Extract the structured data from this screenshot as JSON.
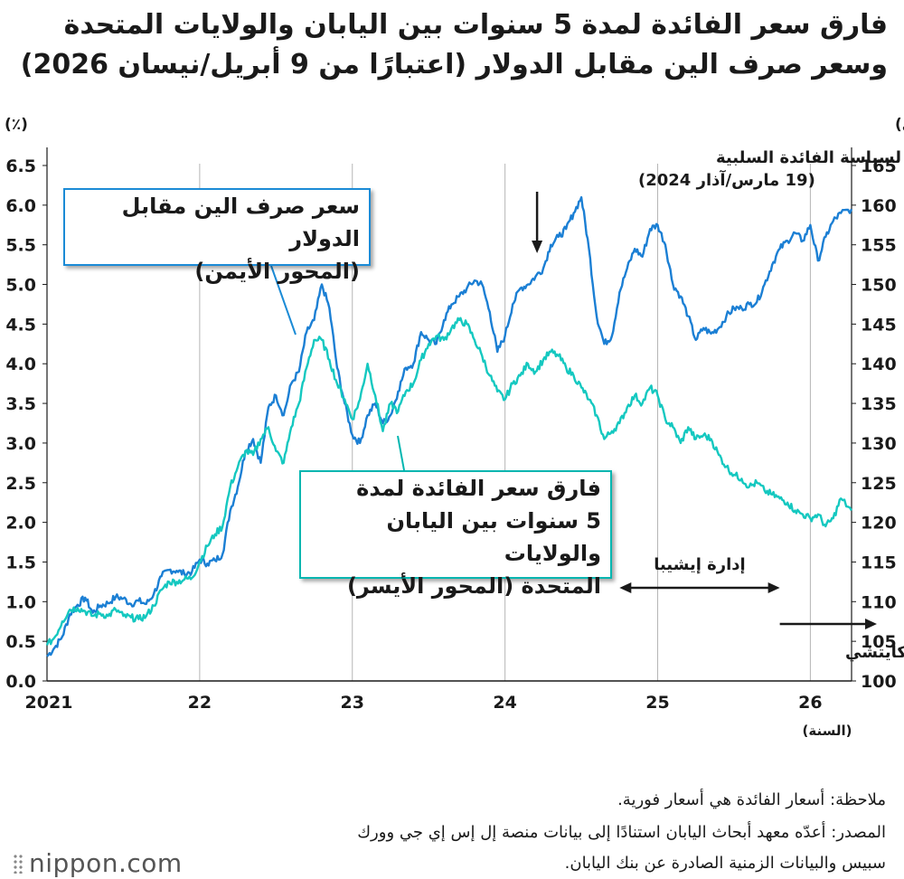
{
  "title": {
    "line1": "فارق سعر الفائدة لمدة 5 سنوات بين اليابان والولايات المتحدة",
    "line2": "وسعر صرف الين مقابل الدولار (اعتبارًا من 9 أبريل/نيسان 2026)"
  },
  "chart_data": {
    "type": "line",
    "x_unit_label": "(السنة)",
    "x_ticks": [
      {
        "x": 2021.0,
        "label": "2021"
      },
      {
        "x": 2022.0,
        "label": "22"
      },
      {
        "x": 2023.0,
        "label": "23"
      },
      {
        "x": 2024.0,
        "label": "24"
      },
      {
        "x": 2025.0,
        "label": "25"
      },
      {
        "x": 2026.0,
        "label": "26"
      }
    ],
    "xlim": [
      2021.0,
      2026.27
    ],
    "y_left": {
      "label": "(٪)",
      "ylim": [
        0,
        6.5
      ],
      "ticks": [
        "0.0",
        "0.5",
        "1.0",
        "1.5",
        "2.0",
        "2.5",
        "3.0",
        "3.5",
        "4.0",
        "4.5",
        "5.0",
        "5.5",
        "6.0",
        "6.5"
      ]
    },
    "y_right": {
      "label": "(عدد الين الياباني لكل دولار أمريكي)",
      "ylim": [
        100,
        165
      ],
      "ticks": [
        "100",
        "105",
        "110",
        "115",
        "120",
        "125",
        "130",
        "135",
        "140",
        "145",
        "150",
        "155",
        "160",
        "165"
      ]
    },
    "grid": "vertical",
    "series": [
      {
        "name": "سعر صرف الين مقابل الدولار (المحور الأيمن)",
        "axis": "right",
        "color": "#1b7fd4",
        "points": [
          [
            2021.0,
            103.1
          ],
          [
            2021.05,
            104.2
          ],
          [
            2021.1,
            105.6
          ],
          [
            2021.15,
            108.4
          ],
          [
            2021.2,
            109.6
          ],
          [
            2021.25,
            110.5
          ],
          [
            2021.3,
            108.6
          ],
          [
            2021.35,
            109.5
          ],
          [
            2021.4,
            109.8
          ],
          [
            2021.45,
            110.6
          ],
          [
            2021.5,
            110.4
          ],
          [
            2021.55,
            109.7
          ],
          [
            2021.6,
            110.1
          ],
          [
            2021.65,
            109.7
          ],
          [
            2021.7,
            111.0
          ],
          [
            2021.75,
            113.2
          ],
          [
            2021.8,
            114.0
          ],
          [
            2021.85,
            113.9
          ],
          [
            2021.9,
            113.5
          ],
          [
            2021.95,
            113.8
          ],
          [
            2022.0,
            115.3
          ],
          [
            2022.05,
            114.8
          ],
          [
            2022.1,
            115.2
          ],
          [
            2022.15,
            116.0
          ],
          [
            2022.2,
            121.5
          ],
          [
            2022.25,
            124.5
          ],
          [
            2022.3,
            129.0
          ],
          [
            2022.35,
            130.5
          ],
          [
            2022.4,
            127.5
          ],
          [
            2022.45,
            134.5
          ],
          [
            2022.5,
            136.0
          ],
          [
            2022.55,
            133.5
          ],
          [
            2022.6,
            137.5
          ],
          [
            2022.65,
            139.0
          ],
          [
            2022.7,
            144.0
          ],
          [
            2022.75,
            145.5
          ],
          [
            2022.8,
            150.0
          ],
          [
            2022.85,
            147.0
          ],
          [
            2022.9,
            139.5
          ],
          [
            2022.95,
            135.0
          ],
          [
            2023.0,
            131.0
          ],
          [
            2023.05,
            130.0
          ],
          [
            2023.1,
            133.5
          ],
          [
            2023.15,
            135.0
          ],
          [
            2023.2,
            132.5
          ],
          [
            2023.25,
            133.5
          ],
          [
            2023.3,
            136.5
          ],
          [
            2023.35,
            139.5
          ],
          [
            2023.4,
            140.0
          ],
          [
            2023.45,
            144.0
          ],
          [
            2023.5,
            143.0
          ],
          [
            2023.55,
            142.5
          ],
          [
            2023.6,
            145.5
          ],
          [
            2023.65,
            147.5
          ],
          [
            2023.7,
            148.5
          ],
          [
            2023.75,
            149.5
          ],
          [
            2023.8,
            150.5
          ],
          [
            2023.85,
            150.0
          ],
          [
            2023.9,
            146.5
          ],
          [
            2023.95,
            141.5
          ],
          [
            2024.0,
            143.5
          ],
          [
            2024.05,
            147.5
          ],
          [
            2024.1,
            149.5
          ],
          [
            2024.15,
            150.0
          ],
          [
            2024.2,
            151.0
          ],
          [
            2024.25,
            152.0
          ],
          [
            2024.3,
            155.0
          ],
          [
            2024.35,
            156.0
          ],
          [
            2024.4,
            157.0
          ],
          [
            2024.45,
            159.0
          ],
          [
            2024.5,
            161.0
          ],
          [
            2024.55,
            154.5
          ],
          [
            2024.6,
            146.0
          ],
          [
            2024.65,
            142.5
          ],
          [
            2024.7,
            143.5
          ],
          [
            2024.75,
            149.0
          ],
          [
            2024.8,
            152.0
          ],
          [
            2024.85,
            154.5
          ],
          [
            2024.9,
            153.5
          ],
          [
            2024.95,
            157.0
          ],
          [
            2025.0,
            157.5
          ],
          [
            2025.05,
            155.0
          ],
          [
            2025.1,
            150.0
          ],
          [
            2025.15,
            148.5
          ],
          [
            2025.2,
            146.0
          ],
          [
            2025.25,
            143.0
          ],
          [
            2025.3,
            144.5
          ],
          [
            2025.35,
            143.8
          ],
          [
            2025.4,
            144.5
          ],
          [
            2025.45,
            146.0
          ],
          [
            2025.5,
            147.0
          ],
          [
            2025.55,
            147.0
          ],
          [
            2025.6,
            147.5
          ],
          [
            2025.65,
            147.8
          ],
          [
            2025.7,
            150.0
          ],
          [
            2025.75,
            152.5
          ],
          [
            2025.8,
            154.5
          ],
          [
            2025.85,
            155.5
          ],
          [
            2025.9,
            156.5
          ],
          [
            2025.95,
            155.5
          ],
          [
            2026.0,
            157.5
          ],
          [
            2026.05,
            153.0
          ],
          [
            2026.1,
            156.0
          ],
          [
            2026.15,
            158.0
          ],
          [
            2026.2,
            159.0
          ],
          [
            2026.27,
            159.5
          ]
        ]
      },
      {
        "name": "فارق سعر الفائدة لمدة 5 سنوات بين اليابان والولايات المتحدة (المحور الأيسر)",
        "axis": "left",
        "color": "#14c8c0",
        "points": [
          [
            2021.0,
            0.45
          ],
          [
            2021.05,
            0.55
          ],
          [
            2021.1,
            0.75
          ],
          [
            2021.15,
            0.9
          ],
          [
            2021.2,
            0.92
          ],
          [
            2021.25,
            0.88
          ],
          [
            2021.3,
            0.82
          ],
          [
            2021.35,
            0.85
          ],
          [
            2021.4,
            0.82
          ],
          [
            2021.45,
            0.9
          ],
          [
            2021.5,
            0.82
          ],
          [
            2021.55,
            0.8
          ],
          [
            2021.6,
            0.78
          ],
          [
            2021.65,
            0.82
          ],
          [
            2021.7,
            0.95
          ],
          [
            2021.75,
            1.15
          ],
          [
            2021.8,
            1.25
          ],
          [
            2021.85,
            1.25
          ],
          [
            2021.9,
            1.28
          ],
          [
            2021.95,
            1.3
          ],
          [
            2022.0,
            1.5
          ],
          [
            2022.05,
            1.7
          ],
          [
            2022.1,
            1.85
          ],
          [
            2022.15,
            1.95
          ],
          [
            2022.2,
            2.45
          ],
          [
            2022.25,
            2.7
          ],
          [
            2022.3,
            2.9
          ],
          [
            2022.35,
            2.85
          ],
          [
            2022.4,
            3.05
          ],
          [
            2022.45,
            3.2
          ],
          [
            2022.5,
            2.9
          ],
          [
            2022.55,
            2.75
          ],
          [
            2022.6,
            3.2
          ],
          [
            2022.65,
            3.5
          ],
          [
            2022.7,
            3.95
          ],
          [
            2022.75,
            4.3
          ],
          [
            2022.8,
            4.3
          ],
          [
            2022.85,
            4.05
          ],
          [
            2022.9,
            3.75
          ],
          [
            2022.95,
            3.55
          ],
          [
            2023.0,
            3.3
          ],
          [
            2023.05,
            3.55
          ],
          [
            2023.1,
            4.0
          ],
          [
            2023.15,
            3.6
          ],
          [
            2023.2,
            3.15
          ],
          [
            2023.25,
            3.5
          ],
          [
            2023.3,
            3.4
          ],
          [
            2023.35,
            3.65
          ],
          [
            2023.4,
            3.75
          ],
          [
            2023.45,
            4.05
          ],
          [
            2023.5,
            4.25
          ],
          [
            2023.55,
            4.35
          ],
          [
            2023.6,
            4.3
          ],
          [
            2023.65,
            4.45
          ],
          [
            2023.7,
            4.55
          ],
          [
            2023.75,
            4.5
          ],
          [
            2023.8,
            4.3
          ],
          [
            2023.85,
            4.1
          ],
          [
            2023.9,
            3.85
          ],
          [
            2023.95,
            3.65
          ],
          [
            2024.0,
            3.55
          ],
          [
            2024.05,
            3.75
          ],
          [
            2024.1,
            3.85
          ],
          [
            2024.15,
            4.0
          ],
          [
            2024.2,
            3.9
          ],
          [
            2024.25,
            4.05
          ],
          [
            2024.3,
            4.15
          ],
          [
            2024.35,
            4.1
          ],
          [
            2024.4,
            3.95
          ],
          [
            2024.45,
            3.85
          ],
          [
            2024.5,
            3.7
          ],
          [
            2024.55,
            3.55
          ],
          [
            2024.6,
            3.35
          ],
          [
            2024.65,
            3.05
          ],
          [
            2024.7,
            3.15
          ],
          [
            2024.75,
            3.25
          ],
          [
            2024.8,
            3.45
          ],
          [
            2024.85,
            3.6
          ],
          [
            2024.9,
            3.5
          ],
          [
            2024.95,
            3.7
          ],
          [
            2025.0,
            3.6
          ],
          [
            2025.05,
            3.3
          ],
          [
            2025.1,
            3.2
          ],
          [
            2025.15,
            3.0
          ],
          [
            2025.2,
            3.2
          ],
          [
            2025.25,
            3.05
          ],
          [
            2025.3,
            3.1
          ],
          [
            2025.35,
            3.05
          ],
          [
            2025.4,
            2.85
          ],
          [
            2025.45,
            2.7
          ],
          [
            2025.5,
            2.6
          ],
          [
            2025.55,
            2.55
          ],
          [
            2025.6,
            2.45
          ],
          [
            2025.65,
            2.5
          ],
          [
            2025.7,
            2.4
          ],
          [
            2025.75,
            2.35
          ],
          [
            2025.8,
            2.3
          ],
          [
            2025.85,
            2.25
          ],
          [
            2025.9,
            2.15
          ],
          [
            2025.95,
            2.1
          ],
          [
            2026.0,
            2.05
          ],
          [
            2026.05,
            2.1
          ],
          [
            2026.1,
            1.95
          ],
          [
            2026.15,
            2.05
          ],
          [
            2026.2,
            2.3
          ],
          [
            2026.27,
            2.15
          ]
        ]
      }
    ]
  },
  "callouts": {
    "usd_jpy": {
      "line1": "سعر صرف الين مقابل الدولار",
      "line2": "(المحور الأيمن)"
    },
    "spread": {
      "line1": "فارق سعر الفائدة لمدة",
      "line2": "5 سنوات بين اليابان والولايات",
      "line3": "المتحدة (المحور الأيسر)"
    }
  },
  "annotations": {
    "boj": {
      "line1": "إنهاء بنك اليابان لسياسة الفائدة السلبية",
      "line2": "(19 مارس/آذار 2024)",
      "x": 2024.21
    },
    "ishiba": {
      "label": "إدارة إيشيبا",
      "start": 2024.75,
      "end": 2025.8
    },
    "takaichi": {
      "label": "إدارة تاكايتشي",
      "start": 2025.8
    }
  },
  "note": "ملاحظة: أسعار الفائدة هي أسعار فورية.",
  "source": {
    "line1": "المصدر: أعدّه معهد أبحاث اليابان استنادًا إلى بيانات منصة إل إس إي جي وورك",
    "line2": "سبيس والبيانات الزمنية الصادرة عن بنك اليابان."
  },
  "logo": "nippon.com",
  "colors": {
    "usd_line": "#1b7fd4",
    "spread_line": "#14c8c0",
    "callout_usd_border": "#1b8bd6",
    "callout_spread_border": "#00b6b0"
  }
}
